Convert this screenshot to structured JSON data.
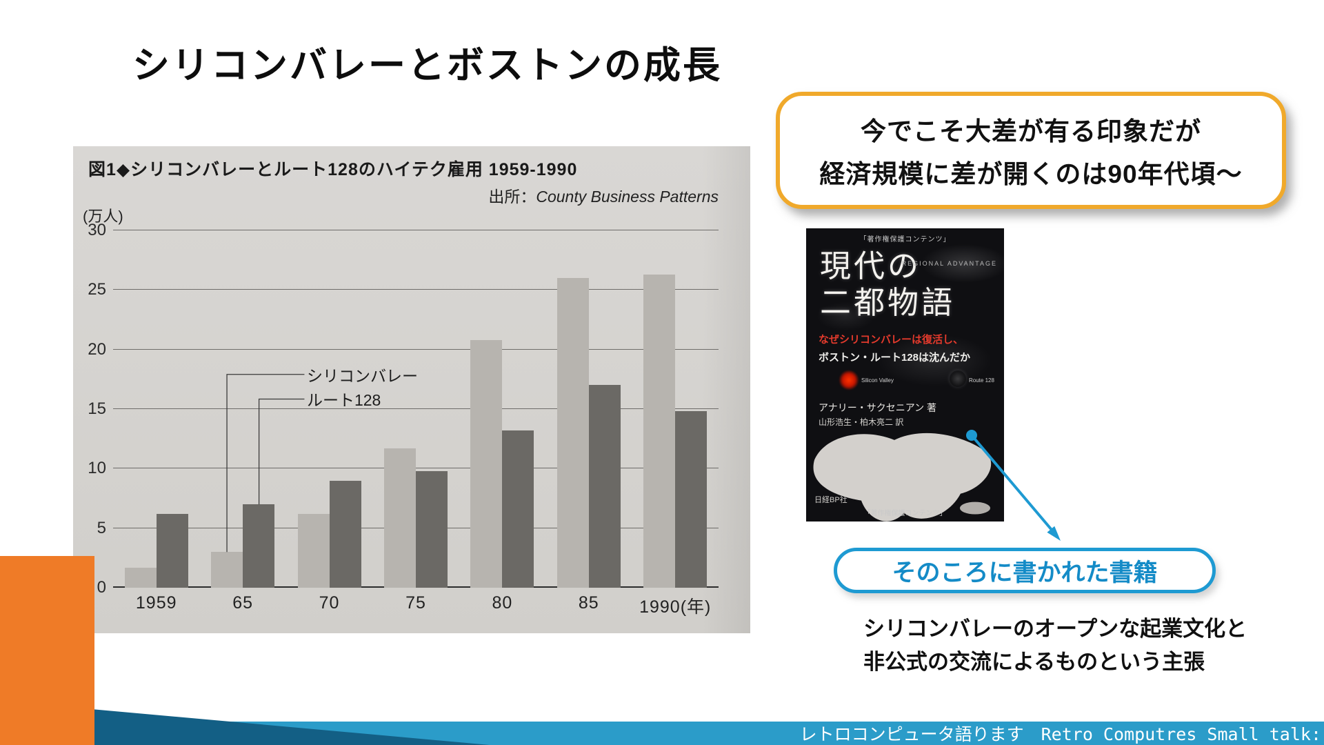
{
  "slide": {
    "title": "シリコンバレーとボストンの成長",
    "footer": "レトロコンピュータ語ります　Retro Computres Small talk:"
  },
  "callout_top": {
    "line1": "今でこそ大差が有る印象だが",
    "line2": "経済規模に差が開くのは90年代頃～"
  },
  "book_callout": {
    "label": "そのころに書かれた書籍"
  },
  "claim": {
    "line1": "シリコンバレーのオープンな起業文化と",
    "line2": "非公式の交流によるものという主張"
  },
  "book": {
    "watermark_top": "「著作権保護コンテンツ」",
    "series_title": "REGIONAL ADVANTAGE",
    "title_line1": "現代の",
    "title_line2": "二都物語",
    "subtitle_red": "なぜシリコンバレーは復活し、",
    "subtitle_white": "ボストン・ルート128は沈んだか",
    "map_label_red": "Silicon Valley",
    "map_label_dark": "Route 128",
    "author": "アナリー・サクセニアン 著",
    "translators": "山形浩生・柏木亮二 訳",
    "publisher": "日経BP社",
    "watermark_bottom": "「著作権保護コンテンツ」"
  },
  "chart_data": {
    "type": "bar",
    "title": "図1◆シリコンバレーとルート128のハイテク雇用 1959-1990",
    "source_label": "出所：",
    "source_name": "County Business Patterns",
    "unit": "(万人)",
    "categories": [
      "1959",
      "65",
      "70",
      "75",
      "80",
      "85",
      "1990(年)"
    ],
    "series": [
      {
        "name": "シリコンバレー",
        "color": "#b7b4af",
        "values": [
          1.7,
          3.0,
          6.2,
          11.7,
          20.8,
          26.0,
          26.3
        ]
      },
      {
        "name": "ルート128",
        "color": "#6b6965",
        "values": [
          6.2,
          7.0,
          9.0,
          9.8,
          13.2,
          17.0,
          14.8
        ]
      }
    ],
    "ylim": [
      0,
      30
    ],
    "yticks": [
      0,
      5,
      10,
      15,
      20,
      25,
      30
    ],
    "grid": true,
    "legend_position": "callout-labels-inside-plot"
  },
  "colors": {
    "accent_blue": "#1e9ad2",
    "band_blue": "#2b9cc9",
    "wedge_teal": "#135f85",
    "corner_orange": "#ef7b27",
    "callout_yellow": "#f0a92b"
  }
}
